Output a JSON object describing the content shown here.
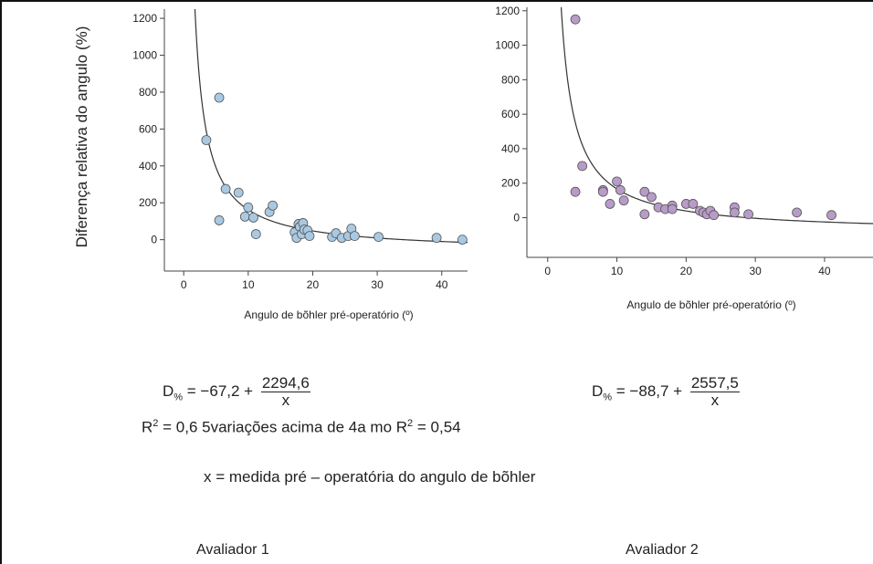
{
  "chart_data": [
    {
      "type": "scatter",
      "ylabel": "Diferença relativa do angulo (%)",
      "xlabel": "Angulo de bõhler pré-operatório (º)",
      "xlim": [
        -3,
        44
      ],
      "ylim": [
        -170,
        1250
      ],
      "xticks": [
        0,
        10,
        20,
        30,
        40
      ],
      "yticks": [
        0,
        200,
        400,
        600,
        800,
        1000,
        1200
      ],
      "point_color": "#a9c9e3",
      "fit": {
        "a": -67.2,
        "b": 2294.6
      },
      "points": [
        [
          3.5,
          540
        ],
        [
          5.5,
          770
        ],
        [
          5.5,
          105
        ],
        [
          6.5,
          275
        ],
        [
          8.5,
          255
        ],
        [
          9.5,
          125
        ],
        [
          10,
          175
        ],
        [
          10.8,
          120
        ],
        [
          11.2,
          30
        ],
        [
          13.3,
          150
        ],
        [
          13.8,
          185
        ],
        [
          17.2,
          40
        ],
        [
          17.5,
          10
        ],
        [
          17.8,
          85
        ],
        [
          18,
          70
        ],
        [
          18.3,
          30
        ],
        [
          18.5,
          90
        ],
        [
          18.7,
          55
        ],
        [
          19.2,
          50
        ],
        [
          19.5,
          20
        ],
        [
          23,
          15
        ],
        [
          23.6,
          35
        ],
        [
          24.5,
          10
        ],
        [
          25.5,
          20
        ],
        [
          26,
          60
        ],
        [
          26.5,
          20
        ],
        [
          30.2,
          15
        ],
        [
          39.2,
          10
        ],
        [
          43.2,
          0
        ]
      ]
    },
    {
      "type": "scatter",
      "ylabel": "",
      "xlabel": "Angulo de bõhler pré-operatório (º)",
      "xlim": [
        -3,
        47
      ],
      "ylim": [
        -230,
        1220
      ],
      "xticks": [
        0,
        10,
        20,
        30,
        40
      ],
      "yticks": [
        0,
        200,
        400,
        600,
        800,
        1000,
        1200
      ],
      "point_color": "#b89bc9",
      "fit": {
        "a": -88.7,
        "b": 2557.5
      },
      "points": [
        [
          4,
          1150
        ],
        [
          4,
          150
        ],
        [
          5,
          300
        ],
        [
          8,
          160
        ],
        [
          8,
          150
        ],
        [
          9,
          80
        ],
        [
          10,
          210
        ],
        [
          10.5,
          160
        ],
        [
          11,
          100
        ],
        [
          14,
          150
        ],
        [
          14,
          20
        ],
        [
          15,
          120
        ],
        [
          16,
          60
        ],
        [
          17,
          50
        ],
        [
          18,
          70
        ],
        [
          18,
          50
        ],
        [
          20,
          80
        ],
        [
          21,
          80
        ],
        [
          22,
          40
        ],
        [
          22.5,
          30
        ],
        [
          23,
          20
        ],
        [
          23.5,
          40
        ],
        [
          24,
          15
        ],
        [
          27,
          60
        ],
        [
          27,
          30
        ],
        [
          29,
          20
        ],
        [
          36,
          30
        ],
        [
          41,
          15
        ]
      ]
    }
  ],
  "formula1": {
    "lhs": "D",
    "sub": "%",
    "eq": " = −67,2 + ",
    "num": "2294,6",
    "den": "x"
  },
  "formula2": {
    "lhs": "D",
    "sub": "%",
    "eq": " = −88,7 + ",
    "num": "2557,5",
    "den": "x"
  },
  "r2": {
    "r": "R",
    "sup": "2",
    "text": " = 0,6 5variações acima de 4a mo R",
    "sup2": "2",
    "text2": " = 0,54"
  },
  "xdef": "x = medida pré – operatória do angulo de bõhler",
  "avaliador1": "Avaliador 1",
  "avaliador2": "Avaliador 2"
}
